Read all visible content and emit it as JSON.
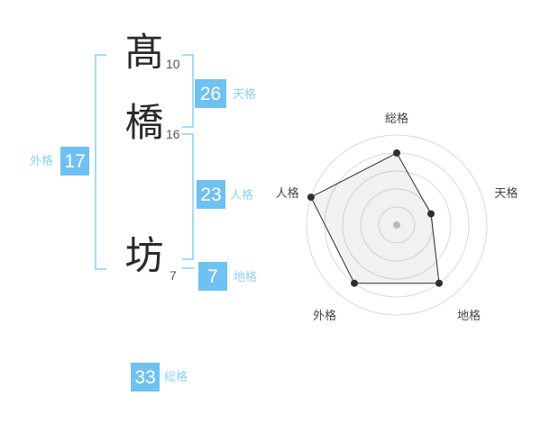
{
  "page": {
    "background": "#ffffff"
  },
  "name": {
    "chars": [
      {
        "char": "髙",
        "strokes": "10"
      },
      {
        "char": "橋",
        "strokes": "16"
      },
      {
        "char": "坊",
        "strokes": "7"
      }
    ]
  },
  "kaku": {
    "tenkaku": {
      "label": "天格",
      "value": "26"
    },
    "jinkaku": {
      "label": "人格",
      "value": "23"
    },
    "chikaku": {
      "label": "地格",
      "value": "7"
    },
    "gaikaku": {
      "label": "外格",
      "value": "17"
    },
    "soukaku": {
      "label": "総格",
      "value": "33"
    }
  },
  "colors": {
    "accent_blue": "#6ec1f0",
    "bracket_blue": "#a4daf8",
    "label_blue": "#8ed0f4",
    "char_color": "#2a2a2a",
    "stroke_num_color": "#565656",
    "ring_color": "#d9d9d9",
    "radar_line_color": "#2b2b2b",
    "radar_dot_color": "#2f2f2f",
    "radar_fill": "rgba(0,0,0,0.055)",
    "radar_center_dot": "#c4c4c4",
    "radar_label_color": "#444444"
  },
  "chart_data": {
    "type": "radar",
    "categories": [
      "総格",
      "天格",
      "地格",
      "外格",
      "人格"
    ],
    "values": [
      4,
      2,
      4,
      4,
      5
    ],
    "max": 5,
    "rings": 5,
    "grid": "circular",
    "legend": "none",
    "start_angle_deg": -90,
    "direction": "clockwise",
    "title": ""
  }
}
